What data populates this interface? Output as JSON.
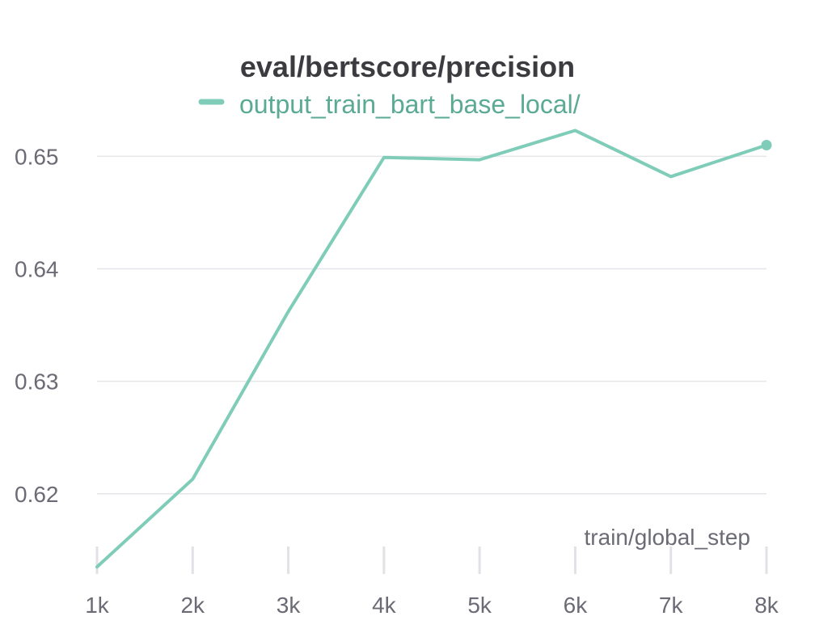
{
  "chart_data": {
    "type": "line",
    "title": "eval/bertscore/precision",
    "xlabel": "train/global_step",
    "ylabel": "",
    "x": [
      1000,
      2000,
      3000,
      4000,
      5000,
      6000,
      7000,
      8000
    ],
    "x_tick_values": [
      1000,
      2000,
      3000,
      4000,
      5000,
      6000,
      7000,
      8000
    ],
    "x_tick_labels": [
      "1k",
      "2k",
      "3k",
      "4k",
      "5k",
      "6k",
      "7k",
      "8k"
    ],
    "y_tick_values": [
      0.62,
      0.63,
      0.64,
      0.65
    ],
    "y_tick_labels": [
      "0.62",
      "0.63",
      "0.64",
      "0.65"
    ],
    "xlim": [
      1000,
      8000
    ],
    "ylim": [
      0.6133,
      0.6524
    ],
    "grid": "horizontal",
    "legend_position": "top-center",
    "series": [
      {
        "name": "output_train_bart_base_local/",
        "color": "#7fcdb8",
        "label_color": "#5aaa94",
        "values": [
          0.6135,
          0.6213,
          0.6362,
          0.6499,
          0.6497,
          0.6523,
          0.6482,
          0.651
        ]
      }
    ]
  }
}
